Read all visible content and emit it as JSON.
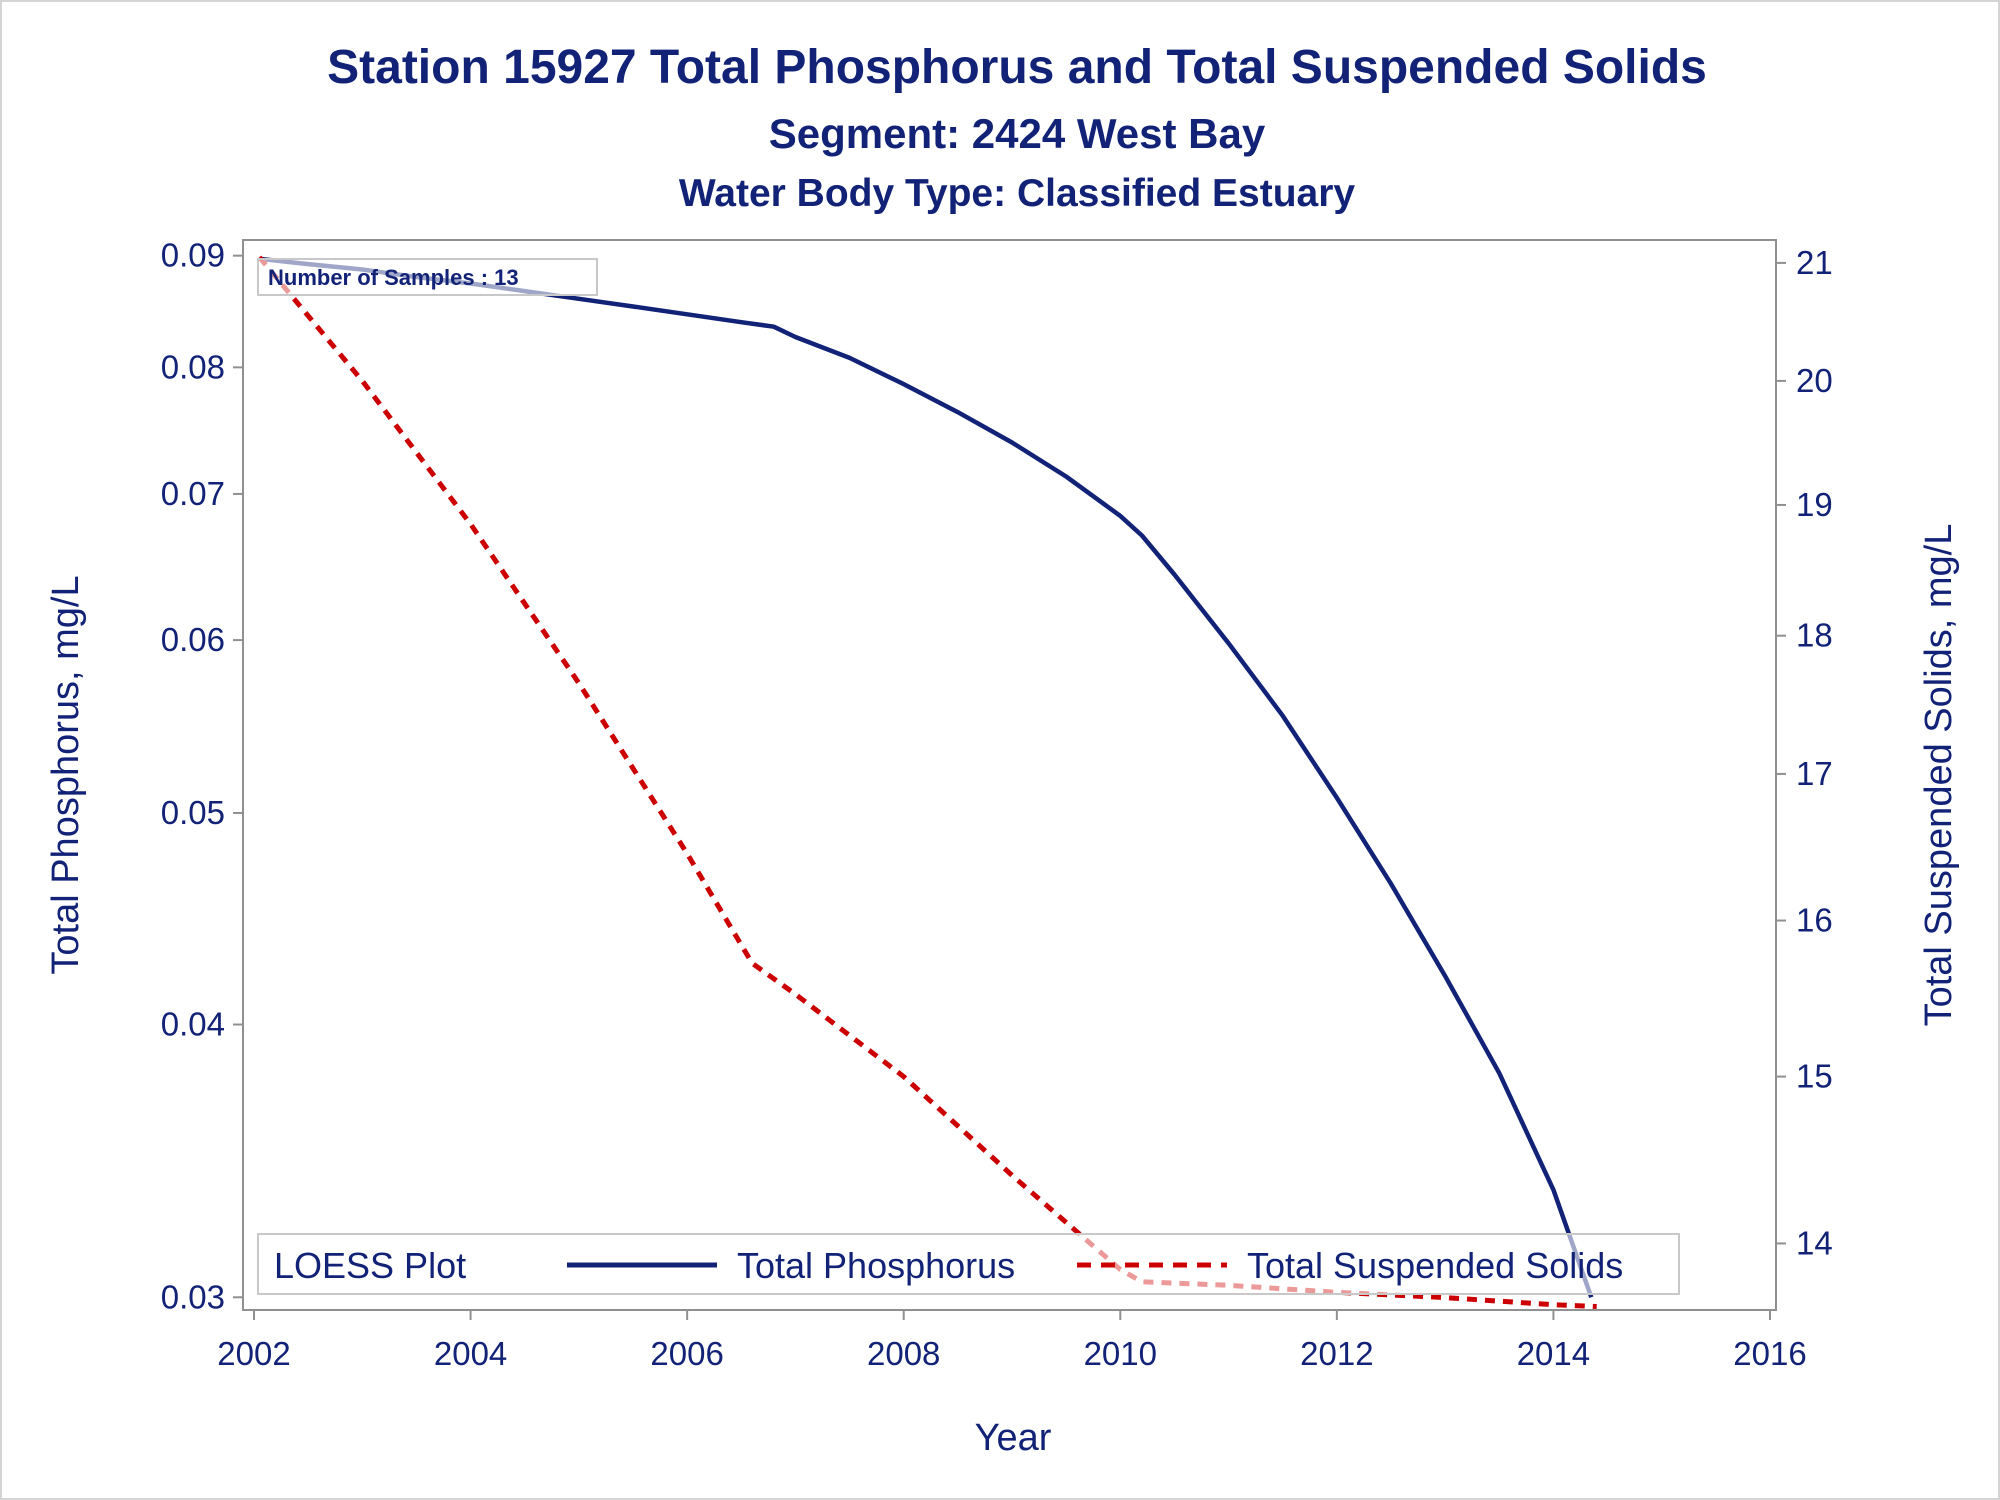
{
  "chart_data": {
    "type": "line",
    "title": "Station 15927  Total Phosphorus and Total Suspended Solids",
    "subtitle": "Segment: 2424  West Bay",
    "subtitle2": "Water Body Type: Classified Estuary",
    "xlabel": "Year",
    "ylabel_left": "Total Phosphorus, mg/L",
    "ylabel_right": "Total Suspended Solids, mg/L",
    "x_ticks": [
      2002,
      2004,
      2006,
      2008,
      2010,
      2012,
      2014,
      2016
    ],
    "y_left_ticks": [
      "0.03",
      "0.04",
      "0.05",
      "0.06",
      "0.07",
      "0.08",
      "0.09"
    ],
    "y_right_ticks": [
      "14",
      "15",
      "16",
      "17",
      "18",
      "19",
      "20",
      "21"
    ],
    "y_left_scale": "log",
    "y_right_scale": "log",
    "xlim": [
      2002,
      2016
    ],
    "ylim_left": [
      0.0296,
      0.0915
    ],
    "ylim_right": [
      13.62,
      21.2
    ],
    "grid": false,
    "inset_note": "Number of Samples : 13",
    "legend": {
      "title": "LOESS Plot",
      "placement": "bottom-inside",
      "items": [
        "Total Phosphorus",
        "Total Suspended Solids"
      ]
    },
    "series": [
      {
        "name": "Total Phosphorus",
        "axis": "left",
        "color": "#112277",
        "style": "solid",
        "x": [
          2002.05,
          2002.5,
          2003,
          2003.5,
          2004,
          2004.5,
          2005,
          2005.5,
          2006,
          2006.5,
          2006.8,
          2007,
          2007.5,
          2008,
          2008.5,
          2009,
          2009.5,
          2010,
          2010.2,
          2010.5,
          2011,
          2011.5,
          2012,
          2012.5,
          2013,
          2013.5,
          2014,
          2014.35
        ],
        "y": [
          0.0897,
          0.0892,
          0.0887,
          0.088,
          0.0874,
          0.0867,
          0.086,
          0.0853,
          0.0846,
          0.0839,
          0.0835,
          0.0826,
          0.0808,
          0.0786,
          0.0763,
          0.0739,
          0.0713,
          0.0684,
          0.067,
          0.0643,
          0.0598,
          0.0554,
          0.0508,
          0.0464,
          0.0421,
          0.038,
          0.0336,
          0.03
        ]
      },
      {
        "name": "Total Suspended Solids",
        "axis": "right",
        "color": "#cc0000",
        "style": "dashed",
        "x": [
          2002.05,
          2003,
          2004,
          2005,
          2006,
          2006.6,
          2007,
          2008,
          2009,
          2010,
          2010.2,
          2011,
          2012,
          2013,
          2014,
          2014.4
        ],
        "y": [
          21.05,
          20.0,
          18.85,
          17.65,
          16.45,
          15.72,
          15.52,
          15.0,
          14.4,
          13.85,
          13.78,
          13.76,
          13.72,
          13.69,
          13.65,
          13.64
        ]
      }
    ]
  }
}
